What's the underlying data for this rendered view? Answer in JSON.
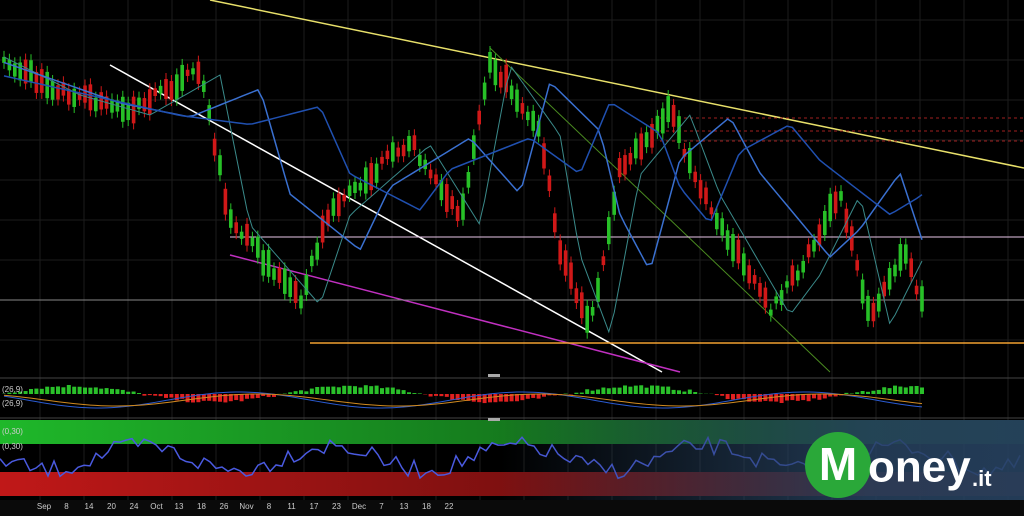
{
  "indicator_labels": [
    "(26,9)",
    "(26,9)",
    "(0,30)",
    "(0,30)"
  ],
  "x_axis_labels": [
    "Sep",
    "8",
    "14",
    "20",
    "24",
    "Oct",
    "13",
    "18",
    "26",
    "Nov",
    "8",
    "11",
    "17",
    "23",
    "Dec",
    "7",
    "13",
    "18",
    "22"
  ],
  "logo": {
    "initial": "M",
    "word": "oney",
    "suffix": ".it"
  }
}
